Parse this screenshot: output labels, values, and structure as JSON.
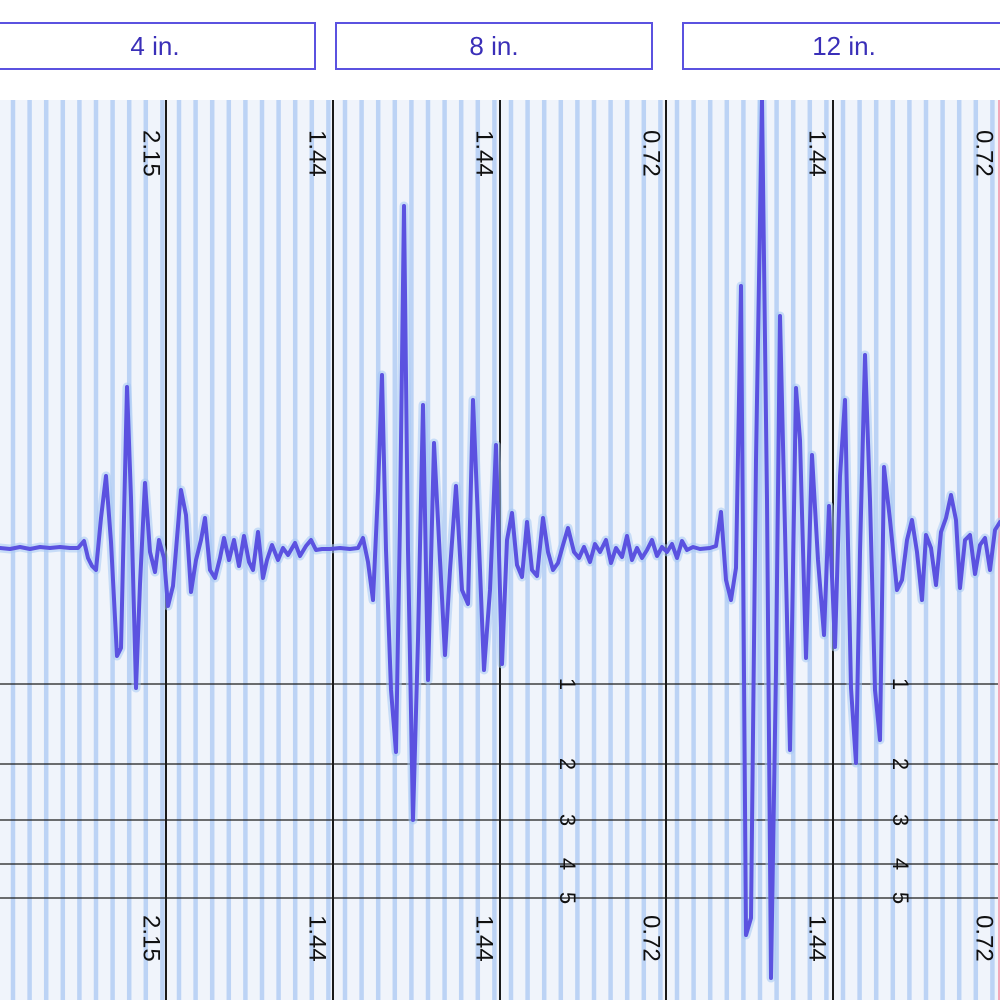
{
  "tabs": [
    {
      "label": "4 in."
    },
    {
      "label": "8 in."
    },
    {
      "label": "12 in."
    }
  ],
  "plot": {
    "column_labels": [
      "2.15",
      "1.44",
      "1.44",
      "0.72",
      "1.44",
      "0.72"
    ],
    "level_labels": [
      "1",
      "2",
      "3",
      "4",
      "5"
    ],
    "colors": {
      "background": "#f0f4fb",
      "stripe": "#bcd3f5",
      "divider": "#1a1a1a",
      "trace": "#5b52e0",
      "trace_glow": "#a6c8f4",
      "tab_border": "#5b52e0",
      "tab_text": "#3a2fb8"
    }
  }
}
